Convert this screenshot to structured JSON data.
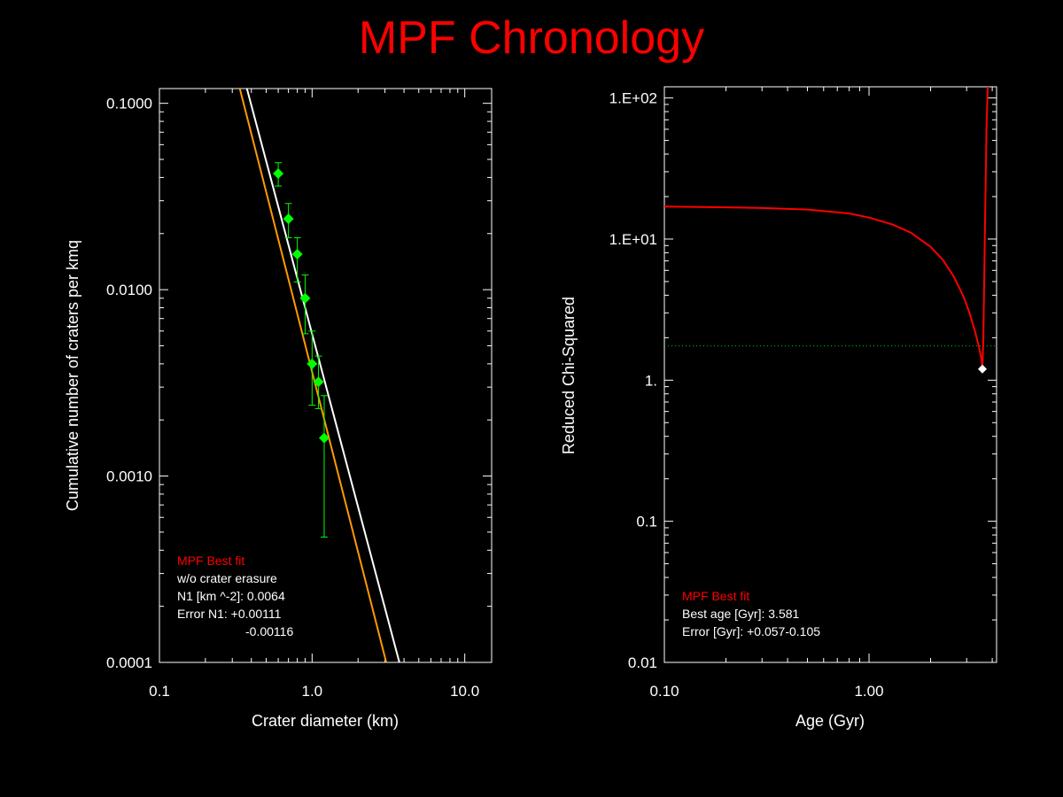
{
  "page": {
    "title": "MPF Chronology"
  },
  "colors": {
    "background": "#000000",
    "title": "#ff0000",
    "axes": "#ffffff",
    "data_points": "#00ff00",
    "fit_line": "#ffffff",
    "alt_fit_line": "#ff9900",
    "chi_curve": "#ff0000",
    "threshold_line": "#00cc00",
    "best_marker": "#ffffff",
    "legend_title": "#ff0000"
  },
  "chart_data": [
    {
      "type": "scatter",
      "xlabel": "Crater diameter (km)",
      "ylabel": "Cumulative number of craters per kmq",
      "xscale": "log",
      "yscale": "log",
      "xlim": [
        0.1,
        15
      ],
      "ylim": [
        0.0001,
        0.12
      ],
      "xticks": [
        0.1,
        1.0,
        10.0
      ],
      "xtick_labels": [
        "0.1",
        "1.0",
        "10.0"
      ],
      "yticks": [
        0.0001,
        0.001,
        0.01,
        0.1
      ],
      "ytick_labels": [
        "0.0001",
        "0.0010",
        "0.0100",
        "0.1000"
      ],
      "series": [
        {
          "kind": "points_with_errors",
          "x": [
            0.6,
            0.7,
            0.8,
            0.9,
            1.0,
            1.1,
            1.2
          ],
          "y": [
            0.042,
            0.024,
            0.0155,
            0.009,
            0.004,
            0.0032,
            0.0016
          ],
          "y_err_low": [
            0.036,
            0.019,
            0.011,
            0.0058,
            0.0024,
            0.0023,
            0.00047
          ],
          "y_err_high": [
            0.048,
            0.029,
            0.019,
            0.012,
            0.006,
            0.0044,
            0.0027
          ]
        },
        {
          "kind": "line",
          "x": [
            0.374,
            3.73
          ],
          "y": [
            0.12,
            0.0001
          ]
        },
        {
          "kind": "line",
          "x": [
            0.336,
            3.06
          ],
          "y": [
            0.12,
            0.0001
          ]
        }
      ],
      "legend": {
        "title": "MPF Best fit",
        "lines": [
          "w/o crater erasure",
          "N1 [km ^-2]: 0.0064",
          "Error N1: +0.00111",
          "-0.00116"
        ]
      }
    },
    {
      "type": "line",
      "xlabel": "Age (Gyr)",
      "ylabel": "Reduced Chi-Squared",
      "xscale": "log",
      "yscale": "log",
      "xlim": [
        0.1,
        4.2
      ],
      "ylim": [
        0.01,
        120
      ],
      "xticks": [
        0.1,
        1.0
      ],
      "xtick_labels": [
        "0.10",
        "1.00"
      ],
      "yticks": [
        0.01,
        0.1,
        1,
        10,
        100
      ],
      "ytick_labels": [
        "0.01",
        "0.1",
        "1.",
        "1.E+01",
        "1.E+02"
      ],
      "series": [
        {
          "kind": "curve",
          "x": [
            0.1,
            0.2,
            0.3,
            0.5,
            0.8,
            1.0,
            1.3,
            1.6,
            2.0,
            2.3,
            2.6,
            2.9,
            3.1,
            3.3,
            3.45,
            3.55,
            3.581,
            3.62,
            3.68,
            3.75,
            3.8
          ],
          "y": [
            17,
            16.8,
            16.6,
            16.2,
            15.2,
            14.2,
            12.7,
            11.1,
            8.8,
            7.1,
            5.4,
            3.9,
            3.0,
            2.2,
            1.7,
            1.4,
            1.2,
            2.0,
            10,
            60,
            120
          ]
        }
      ],
      "threshold": 1.75,
      "best": {
        "x": 3.581,
        "y": 1.2
      },
      "legend": {
        "title": "MPF Best fit",
        "lines": [
          "Best age [Gyr]: 3.581",
          "Error [Gyr]: +0.057-0.105"
        ]
      }
    }
  ]
}
